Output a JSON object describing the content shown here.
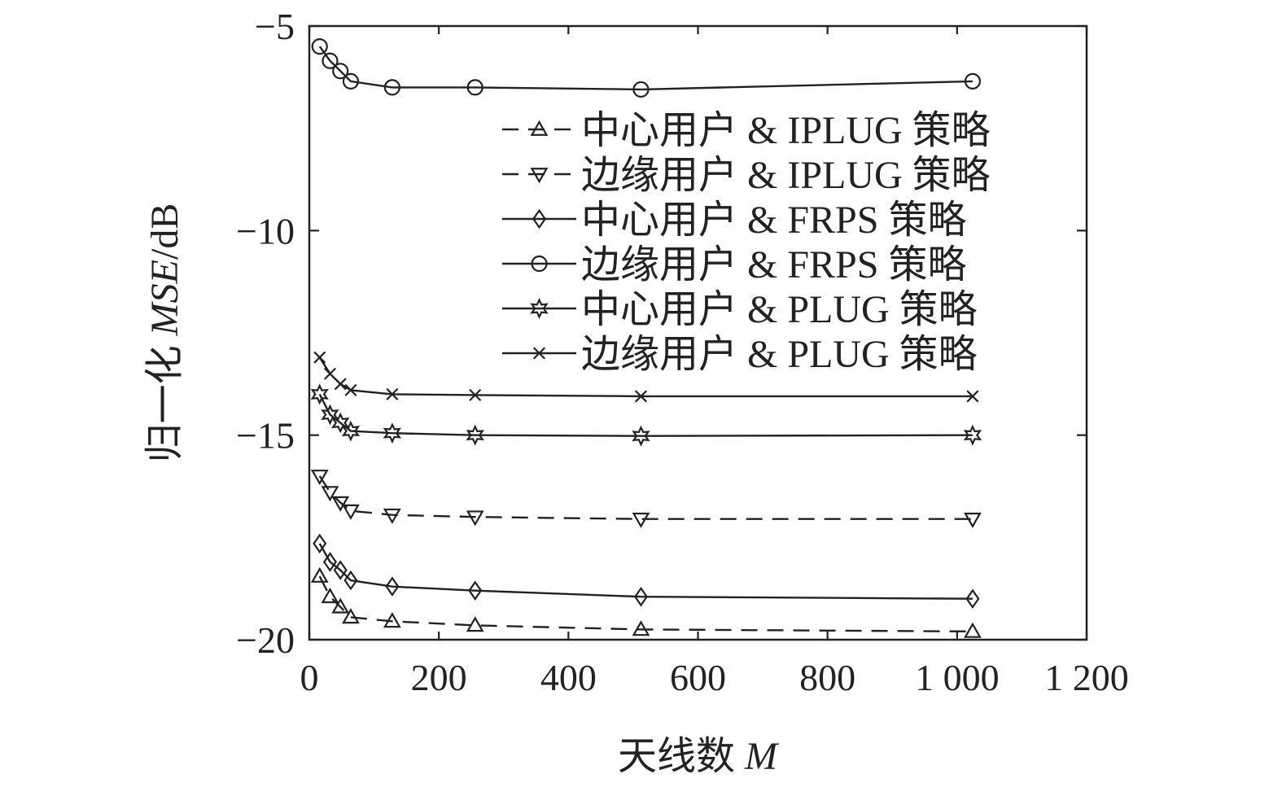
{
  "chart_data": {
    "type": "line",
    "title": "",
    "xlabel": "天线数",
    "xlabel_var": "M",
    "ylabel_prefix": "归一化",
    "ylabel_var": "MSE",
    "ylabel_suffix": "/dB",
    "xlim": [
      0,
      1200
    ],
    "ylim": [
      -20,
      -5
    ],
    "xticks": [
      0,
      200,
      400,
      600,
      800,
      1000,
      1200
    ],
    "xtick_labels": [
      "0",
      "200",
      "400",
      "600",
      "800",
      "1 000",
      "1 200"
    ],
    "yticks": [
      -5,
      -10,
      -15,
      -20
    ],
    "ytick_labels": [
      "−5",
      "−10",
      "−15",
      "−20"
    ],
    "grid": false,
    "legend_position": "top-right",
    "x": [
      16,
      32,
      48,
      64,
      128,
      256,
      512,
      1024
    ],
    "series": [
      {
        "name": "中心用户 & IPLUG 策略",
        "marker": "triangle-up",
        "dash": true,
        "values": [
          -18.45,
          -18.95,
          -19.2,
          -19.45,
          -19.55,
          -19.65,
          -19.75,
          -19.8
        ]
      },
      {
        "name": "边缘用户 & IPLUG 策略",
        "marker": "triangle-down",
        "dash": true,
        "values": [
          -16.0,
          -16.4,
          -16.65,
          -16.85,
          -16.95,
          -17.0,
          -17.05,
          -17.05
        ]
      },
      {
        "name": "中心用户 & FRPS 策略",
        "marker": "diamond",
        "dash": false,
        "values": [
          -17.65,
          -18.1,
          -18.3,
          -18.55,
          -18.7,
          -18.8,
          -18.95,
          -19.0
        ]
      },
      {
        "name": "边缘用户 & FRPS 策略",
        "marker": "circle",
        "dash": false,
        "values": [
          -5.5,
          -5.85,
          -6.1,
          -6.35,
          -6.5,
          -6.5,
          -6.55,
          -6.35
        ]
      },
      {
        "name": "中心用户 & PLUG 策略",
        "marker": "hexagram",
        "dash": false,
        "values": [
          -14.0,
          -14.5,
          -14.7,
          -14.9,
          -14.95,
          -15.0,
          -15.02,
          -15.0
        ]
      },
      {
        "name": "边缘用户 & PLUG 策略",
        "marker": "x",
        "dash": false,
        "values": [
          -13.1,
          -13.5,
          -13.75,
          -13.9,
          -14.0,
          -14.02,
          -14.05,
          -14.05
        ]
      }
    ]
  }
}
